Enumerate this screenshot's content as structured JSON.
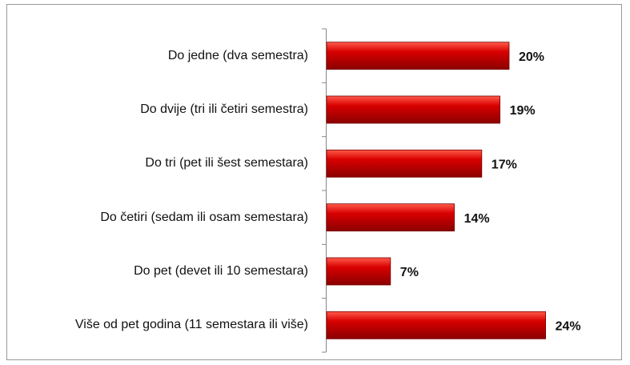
{
  "chart_data": {
    "type": "bar",
    "orientation": "horizontal",
    "categories": [
      "Do jedne (dva semestra)",
      "Do dvije (tri ili četiri semestra)",
      "Do tri (pet ili šest semestara)",
      "Do četiri (sedam ili osam semestara)",
      "Do pet (devet ili 10 semestara)",
      "Više od pet godina (11 semestara ili više)"
    ],
    "values": [
      20,
      19,
      17,
      14,
      7,
      24
    ],
    "value_labels": [
      "20%",
      "19%",
      "17%",
      "14%",
      "7%",
      "24%"
    ],
    "color": "#c00000"
  }
}
